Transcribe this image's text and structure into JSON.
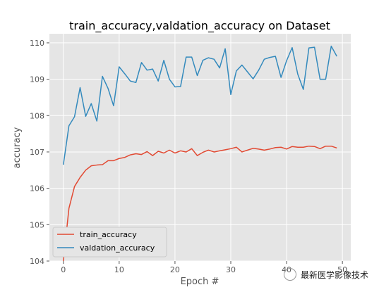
{
  "chart_data": {
    "type": "line",
    "title": "train_accuracy,valdation_accuracy on Dataset",
    "xlabel": "Epoch #",
    "ylabel": "accuracy",
    "xlim": [
      -2.5,
      51.5
    ],
    "ylim": [
      104,
      110.25
    ],
    "xticks": [
      0,
      10,
      20,
      30,
      40,
      50
    ],
    "yticks": [
      104,
      105,
      106,
      107,
      108,
      109,
      110
    ],
    "grid": true,
    "legend_position": "lower-left",
    "x": [
      0,
      1,
      2,
      3,
      4,
      5,
      6,
      7,
      8,
      9,
      10,
      11,
      12,
      13,
      14,
      15,
      16,
      17,
      18,
      19,
      20,
      21,
      22,
      23,
      24,
      25,
      26,
      27,
      28,
      29,
      30,
      31,
      32,
      33,
      34,
      35,
      36,
      37,
      38,
      39,
      40,
      41,
      42,
      43,
      44,
      45,
      46,
      47,
      48,
      49
    ],
    "series": [
      {
        "name": "train_accuracy",
        "color": "#e24a33",
        "values": [
          104.0,
          105.45,
          106.05,
          106.3,
          106.5,
          106.62,
          106.64,
          106.65,
          106.76,
          106.76,
          106.82,
          106.85,
          106.92,
          106.95,
          106.93,
          107.01,
          106.9,
          107.02,
          106.97,
          107.05,
          106.97,
          107.03,
          107.0,
          107.09,
          106.9,
          106.99,
          107.05,
          107.0,
          107.03,
          107.06,
          107.09,
          107.13,
          107.0,
          107.05,
          107.1,
          107.08,
          107.05,
          107.08,
          107.12,
          107.13,
          107.08,
          107.15,
          107.13,
          107.13,
          107.16,
          107.15,
          107.09,
          107.16,
          107.16,
          107.11
        ]
      },
      {
        "name": "valdation_accuracy",
        "color": "#348abd",
        "values": [
          106.65,
          107.72,
          107.97,
          108.77,
          107.98,
          108.33,
          107.85,
          109.08,
          108.75,
          108.27,
          109.34,
          109.15,
          108.95,
          108.91,
          109.46,
          109.25,
          109.28,
          108.95,
          109.52,
          109.0,
          108.79,
          108.8,
          109.61,
          109.61,
          109.1,
          109.52,
          109.59,
          109.55,
          109.31,
          109.84,
          108.58,
          109.23,
          109.39,
          109.2,
          109.01,
          109.25,
          109.55,
          109.6,
          109.63,
          109.05,
          109.51,
          109.87,
          109.14,
          108.72,
          109.86,
          109.88,
          109.0,
          109.0,
          109.91,
          109.63
        ]
      }
    ]
  },
  "watermark": {
    "text": "最新医学影像技术",
    "icon": "wechat-icon"
  }
}
